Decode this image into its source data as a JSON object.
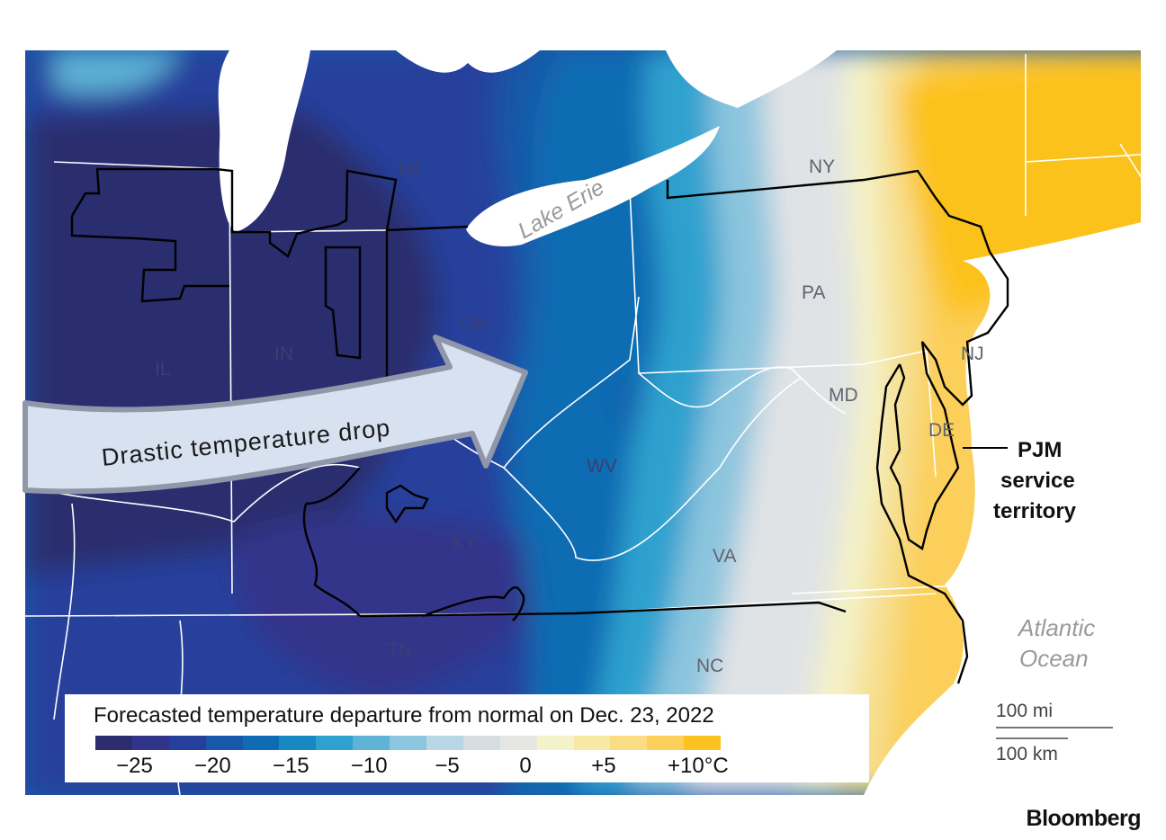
{
  "map": {
    "states": [
      "MI",
      "IL",
      "IN",
      "OH",
      "WV",
      "KY",
      "TN",
      "VA",
      "NC",
      "PA",
      "NY",
      "MD",
      "DE",
      "NJ"
    ],
    "water_labels": {
      "lake": "Lake Erie",
      "ocean_line1": "Atlantic",
      "ocean_line2": "Ocean"
    },
    "arrow_label": "Drastic temperature drop",
    "pjm_label": [
      "PJM",
      "service",
      "territory"
    ],
    "scale": {
      "miles": "100 mi",
      "km": "100 km"
    },
    "brand": "Bloomberg"
  },
  "legend": {
    "title": "Forecasted temperature departure from normal on Dec. 23, 2022",
    "tick_labels": [
      "−25",
      "−20",
      "−15",
      "−10",
      "−5",
      "0",
      "+5",
      "+10°C"
    ],
    "tick_values": [
      -25,
      -20,
      -15,
      -10,
      -5,
      0,
      5,
      10
    ],
    "range": [
      -27.5,
      12.5
    ],
    "colors": [
      "#2b2d6e",
      "#30358a",
      "#253f9c",
      "#1957a8",
      "#0f6cb2",
      "#1688c2",
      "#2ea1cf",
      "#5fb3d6",
      "#8cc5de",
      "#b7d6e6",
      "#d6dde3",
      "#e6e6e4",
      "#f4f2c8",
      "#f7e8a4",
      "#fadc82",
      "#fbcf5a",
      "#fcc21f"
    ]
  },
  "colors": {
    "deep_cold": "#2b2d6e",
    "cold": "#253f9c",
    "cool": "#0f6cb2",
    "mild_cool": "#5fb3d6",
    "neutral": "#e3e6e8",
    "warm": "#f7e090",
    "hot": "#fcc21f",
    "water": "#ffffff",
    "pjm_border": "#000000",
    "state_border": "#ffffff"
  }
}
